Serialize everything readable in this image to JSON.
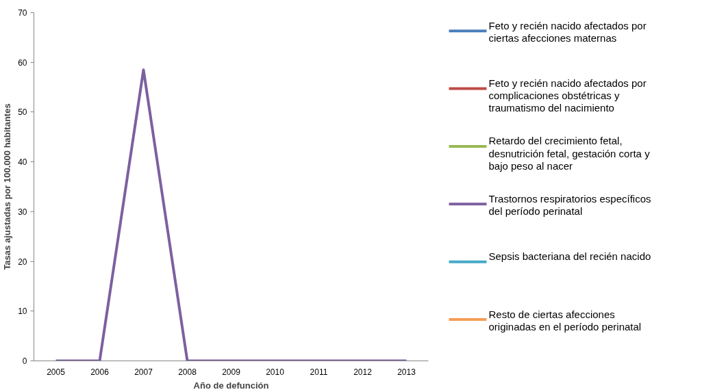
{
  "chart_data": {
    "type": "line",
    "xlabel": "Año de defunción",
    "ylabel": "Tasas ajustadas por 100.000 habitantes",
    "categories": [
      "2005",
      "2006",
      "2007",
      "2008",
      "2009",
      "2010",
      "2011",
      "2012",
      "2013"
    ],
    "ylim": [
      0,
      70
    ],
    "yticks": [
      0,
      10,
      20,
      30,
      40,
      50,
      60,
      70
    ],
    "grid": false,
    "legend": "right",
    "marker": "none",
    "line_style": "solid",
    "series": [
      {
        "name": "Feto y recién nacido afectados por ciertas afecciones maternas",
        "color": "#4a7ebb",
        "values": [
          null,
          null,
          null,
          null,
          null,
          null,
          null,
          null,
          null
        ]
      },
      {
        "name": "Feto y recién nacido afectados por complicaciones obstétricas y traumatismo del nacimiento",
        "color": "#be4b48",
        "values": [
          null,
          null,
          null,
          null,
          null,
          null,
          null,
          null,
          null
        ]
      },
      {
        "name": "Retardo del crecimiento fetal, desnutrición fetal, gestación corta y bajo peso al nacer",
        "color": "#98b954",
        "values": [
          null,
          null,
          null,
          null,
          null,
          null,
          null,
          null,
          null
        ]
      },
      {
        "name": "Trastornos respiratorios específicos del período perinatal",
        "color": "#7d60a0",
        "values": [
          0,
          0,
          58.5,
          0,
          0,
          0,
          0,
          0,
          0
        ]
      },
      {
        "name": "Sepsis bacteriana del recién nacido",
        "color": "#46aac5",
        "values": [
          null,
          null,
          null,
          null,
          null,
          null,
          null,
          null,
          null
        ]
      },
      {
        "name": "Resto de ciertas afecciones originadas en el período perinatal",
        "color": "#f59d56",
        "values": [
          null,
          null,
          null,
          null,
          null,
          null,
          null,
          null,
          null
        ]
      }
    ]
  }
}
